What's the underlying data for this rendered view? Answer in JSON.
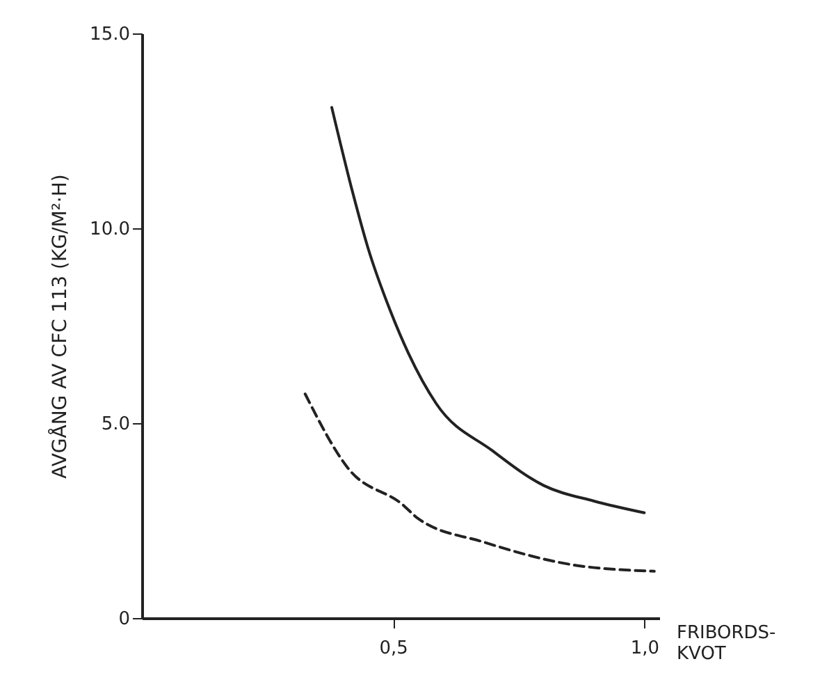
{
  "chart_data": {
    "type": "line",
    "xlabel": "FRIBORDS-\nKVOT",
    "ylabel": "AVGÅNG AV CFC 113 (KG/M²·H)",
    "xlim": [
      0,
      1.03
    ],
    "ylim": [
      0,
      15
    ],
    "xticks": [
      {
        "value": 0.5,
        "label": "0,5"
      },
      {
        "value": 1.0,
        "label": "1,0"
      }
    ],
    "yticks": [
      0,
      {
        "value": 5,
        "label": "5.0"
      },
      {
        "value": 10,
        "label": "10.0"
      },
      {
        "value": 15,
        "label": "15.0"
      }
    ],
    "grid": false,
    "marker": "none",
    "series": [
      {
        "color": "#222222",
        "line_style": "solid",
        "x": [
          0.378,
          0.42,
          0.45,
          0.494,
          0.586,
          0.697,
          0.8,
          0.9,
          1.0
        ],
        "values": [
          13.1,
          10.9,
          9.5,
          7.9,
          5.5,
          4.3,
          3.4,
          3.0,
          2.7
        ]
      },
      {
        "color": "#222222",
        "line_style": "dashed",
        "x": [
          0.325,
          0.41,
          0.52,
          0.55,
          0.68,
          0.865,
          1.02
        ],
        "values": [
          5.75,
          3.85,
          2.9,
          2.55,
          1.95,
          1.35,
          1.2
        ]
      }
    ]
  }
}
